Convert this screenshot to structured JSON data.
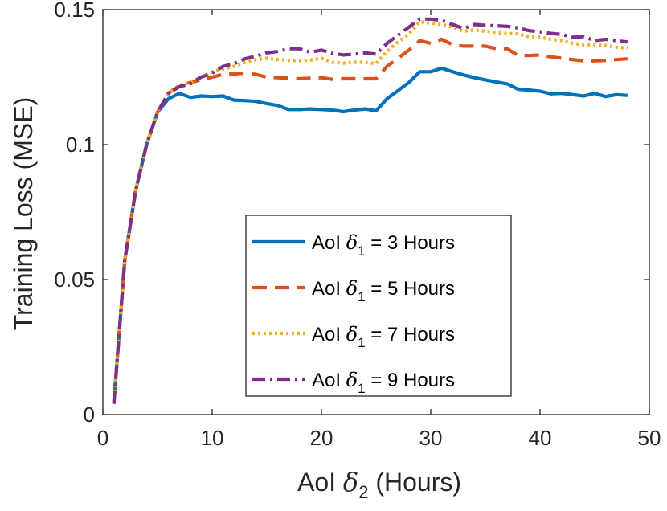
{
  "chart_data": {
    "type": "line",
    "title": "",
    "xlabel": {
      "prefix": "AoI ",
      "symbol": "δ",
      "subscript": "2",
      "suffix": " (Hours)"
    },
    "ylabel": "Training Loss (MSE)",
    "xlim": [
      0,
      50
    ],
    "ylim": [
      0,
      0.15
    ],
    "xticks": [
      0,
      10,
      20,
      30,
      40,
      50
    ],
    "xtick_labels": [
      "0",
      "10",
      "20",
      "30",
      "40",
      "50"
    ],
    "yticks": [
      0,
      0.05,
      0.1,
      0.15
    ],
    "ytick_labels": [
      "0",
      "0.05",
      "0.1",
      "0.15"
    ],
    "grid": false,
    "legend_position": "lower-right",
    "x": [
      1,
      2,
      3,
      4,
      5,
      6,
      7,
      8,
      9,
      10,
      11,
      12,
      13,
      14,
      15,
      16,
      17,
      18,
      19,
      20,
      21,
      22,
      23,
      24,
      25,
      26,
      27,
      28,
      29,
      30,
      31,
      32,
      33,
      34,
      35,
      36,
      37,
      38,
      39,
      40,
      41,
      42,
      43,
      44,
      45,
      46,
      47,
      48
    ],
    "series": [
      {
        "name": "AoI δ1 = 3 Hours",
        "legend": {
          "prefix": "AoI ",
          "symbol": "δ",
          "subscript": "1",
          "suffix": " = 3 Hours"
        },
        "color": "#0072BD",
        "dash": "solid",
        "values": [
          0.004,
          0.057,
          0.083,
          0.1,
          0.112,
          0.117,
          0.119,
          0.1175,
          0.118,
          0.1178,
          0.118,
          0.1165,
          0.1163,
          0.116,
          0.1152,
          0.1145,
          0.113,
          0.113,
          0.1132,
          0.113,
          0.1128,
          0.1122,
          0.1128,
          0.1132,
          0.1125,
          0.117,
          0.12,
          0.123,
          0.127,
          0.127,
          0.1283,
          0.127,
          0.1258,
          0.1248,
          0.124,
          0.1232,
          0.1225,
          0.1205,
          0.1202,
          0.1198,
          0.1188,
          0.119,
          0.1185,
          0.118,
          0.119,
          0.1178,
          0.1185,
          0.1182
        ]
      },
      {
        "name": "AoI δ1 = 5 Hours",
        "legend": {
          "prefix": "AoI ",
          "symbol": "δ",
          "subscript": "1",
          "suffix": " = 5 Hours"
        },
        "color": "#D95319",
        "dash": "dashed",
        "values": [
          0.004,
          0.057,
          0.083,
          0.1,
          0.112,
          0.119,
          0.122,
          0.123,
          0.124,
          0.125,
          0.126,
          0.1262,
          0.1265,
          0.126,
          0.125,
          0.1248,
          0.1246,
          0.1244,
          0.1246,
          0.1248,
          0.1242,
          0.1244,
          0.1244,
          0.1244,
          0.1244,
          0.129,
          0.132,
          0.135,
          0.1385,
          0.1375,
          0.139,
          0.137,
          0.1365,
          0.1365,
          0.1365,
          0.1355,
          0.1355,
          0.133,
          0.133,
          0.1332,
          0.1325,
          0.132,
          0.1315,
          0.131,
          0.131,
          0.1312,
          0.1315,
          0.1318
        ]
      },
      {
        "name": "AoI δ1 = 7 Hours",
        "legend": {
          "prefix": "AoI ",
          "symbol": "δ",
          "subscript": "1",
          "suffix": " = 7 Hours"
        },
        "color": "#EDB120",
        "dash": "dotted",
        "values": [
          0.004,
          0.057,
          0.083,
          0.1,
          0.112,
          0.119,
          0.122,
          0.123,
          0.125,
          0.127,
          0.128,
          0.129,
          0.1305,
          0.1315,
          0.132,
          0.1315,
          0.1312,
          0.131,
          0.1313,
          0.132,
          0.1305,
          0.1302,
          0.1305,
          0.1305,
          0.13,
          0.1345,
          0.138,
          0.141,
          0.1455,
          0.145,
          0.1445,
          0.1435,
          0.142,
          0.1425,
          0.142,
          0.1415,
          0.1412,
          0.141,
          0.14,
          0.1398,
          0.139,
          0.1385,
          0.1375,
          0.137,
          0.137,
          0.1368,
          0.136,
          0.1358
        ]
      },
      {
        "name": "AoI δ1 = 9 Hours",
        "legend": {
          "prefix": "AoI ",
          "symbol": "δ",
          "subscript": "1",
          "suffix": " = 9 Hours"
        },
        "color": "#7E2F8E",
        "dash": "dashdot",
        "values": [
          0.004,
          0.057,
          0.083,
          0.1,
          0.112,
          0.119,
          0.1215,
          0.1225,
          0.125,
          0.1265,
          0.129,
          0.13,
          0.1318,
          0.1328,
          0.134,
          0.1345,
          0.1355,
          0.1355,
          0.1342,
          0.135,
          0.1338,
          0.1332,
          0.1335,
          0.134,
          0.1335,
          0.1375,
          0.1405,
          0.1435,
          0.1465,
          0.1465,
          0.146,
          0.1445,
          0.143,
          0.1445,
          0.1442,
          0.144,
          0.1438,
          0.1432,
          0.1422,
          0.1418,
          0.1412,
          0.1408,
          0.1398,
          0.14,
          0.1385,
          0.139,
          0.1385,
          0.138
        ]
      }
    ]
  }
}
